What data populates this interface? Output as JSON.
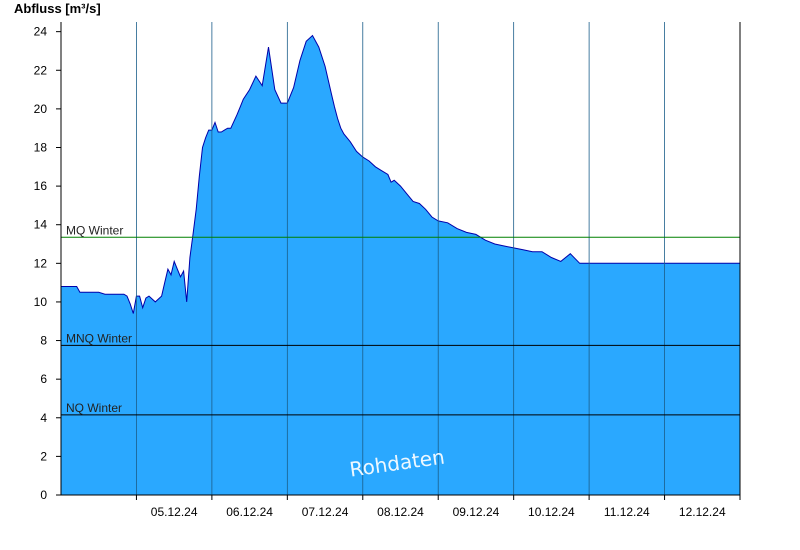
{
  "chart_data": {
    "type": "area",
    "title": "",
    "ylabel": "Abfluss [m³/s]",
    "xlabel": "",
    "ylim": [
      0,
      24.5
    ],
    "yticks": [
      0,
      2,
      4,
      6,
      8,
      10,
      12,
      14,
      16,
      18,
      20,
      22,
      24
    ],
    "x_range": [
      "04.12.24 00:00",
      "12.12.24 24:00"
    ],
    "xtick_labels": [
      "05.12.24",
      "06.12.24",
      "07.12.24",
      "08.12.24",
      "09.12.24",
      "10.12.24",
      "11.12.24",
      "12.12.24"
    ],
    "grid": {
      "vertical": true,
      "horizontal_y": false
    },
    "fill_color": "#2aa8ff",
    "line_color": "#0000aa",
    "series": [
      {
        "x": [
          "04.12.24 00:00",
          "04.12.24 05:00",
          "04.12.24 06:00",
          "04.12.24 12:00",
          "04.12.24 14:00",
          "04.12.24 20:00",
          "04.12.24 21:00",
          "04.12.24 22:00",
          "04.12.24 23:00",
          "05.12.24 00:00",
          "05.12.24 01:00",
          "05.12.24 02:00",
          "05.12.24 03:00",
          "05.12.24 04:00",
          "05.12.24 06:00",
          "05.12.24 08:00",
          "05.12.24 09:00",
          "05.12.24 10:00",
          "05.12.24 11:00",
          "05.12.24 12:00",
          "05.12.24 13:00",
          "05.12.24 14:00",
          "05.12.24 15:00",
          "05.12.24 16:00",
          "05.12.24 17:00",
          "05.12.24 18:00",
          "05.12.24 19:00",
          "05.12.24 20:00",
          "05.12.24 21:00",
          "05.12.24 22:00",
          "05.12.24 23:00",
          "06.12.24 00:00",
          "06.12.24 01:00",
          "06.12.24 02:00",
          "06.12.24 03:00",
          "06.12.24 04:00",
          "06.12.24 05:00",
          "06.12.24 06:00",
          "06.12.24 08:00",
          "06.12.24 09:00",
          "06.12.24 10:00",
          "06.12.24 12:00",
          "06.12.24 14:00",
          "06.12.24 16:00",
          "06.12.24 18:00",
          "06.12.24 20:00",
          "06.12.24 22:00",
          "07.12.24 00:00",
          "07.12.24 02:00",
          "07.12.24 04:00",
          "07.12.24 06:00",
          "07.12.24 08:00",
          "07.12.24 10:00",
          "07.12.24 12:00",
          "07.12.24 13:00",
          "07.12.24 14:00",
          "07.12.24 15:00",
          "07.12.24 16:00",
          "07.12.24 17:00",
          "07.12.24 18:00",
          "07.12.24 20:00",
          "07.12.24 22:00",
          "08.12.24 00:00",
          "08.12.24 02:00",
          "08.12.24 04:00",
          "08.12.24 06:00",
          "08.12.24 08:00",
          "08.12.24 09:00",
          "08.12.24 10:00",
          "08.12.24 12:00",
          "08.12.24 14:00",
          "08.12.24 16:00",
          "08.12.24 18:00",
          "08.12.24 20:00",
          "08.12.24 22:00",
          "09.12.24 00:00",
          "09.12.24 03:00",
          "09.12.24 06:00",
          "09.12.24 09:00",
          "09.12.24 12:00",
          "09.12.24 15:00",
          "09.12.24 18:00",
          "09.12.24 21:00",
          "10.12.24 00:00",
          "10.12.24 03:00",
          "10.12.24 06:00",
          "10.12.24 09:00",
          "10.12.24 12:00",
          "10.12.24 15:00",
          "10.12.24 18:00",
          "10.12.24 21:00",
          "11.12.24 00:00",
          "11.12.24 03:00",
          "11.12.24 06:00",
          "11.12.24 09:00",
          "11.12.24 12:00",
          "11.12.24 15:00",
          "11.12.24 18:00",
          "11.12.24 21:00",
          "12.12.24 00:00",
          "12.12.24 03:00",
          "12.12.24 06:00",
          "12.12.24 09:00",
          "12.12.24 12:00",
          "12.12.24 15:00",
          "12.12.24 18:00",
          "12.12.24 21:00",
          "12.12.24 24:00"
        ],
        "y": [
          10.8,
          10.8,
          10.5,
          10.5,
          10.4,
          10.4,
          10.3,
          9.9,
          9.4,
          10.3,
          10.3,
          9.7,
          10.2,
          10.3,
          10.0,
          10.3,
          11.0,
          11.7,
          11.4,
          12.1,
          11.7,
          11.3,
          11.6,
          10.0,
          12.3,
          13.5,
          14.8,
          16.5,
          18.0,
          18.5,
          18.9,
          18.9,
          19.3,
          18.8,
          18.8,
          18.9,
          19.0,
          19.0,
          19.7,
          20.1,
          20.5,
          21.0,
          21.7,
          21.2,
          23.2,
          21.0,
          20.3,
          20.3,
          21.1,
          22.5,
          23.5,
          23.8,
          23.2,
          22.2,
          21.5,
          20.8,
          20.1,
          19.5,
          19.0,
          18.7,
          18.3,
          17.8,
          17.5,
          17.3,
          17.0,
          16.8,
          16.6,
          16.2,
          16.3,
          16.0,
          15.6,
          15.2,
          15.1,
          14.8,
          14.4,
          14.2,
          14.1,
          13.8,
          13.6,
          13.5,
          13.2,
          13.0,
          12.9,
          12.8,
          12.7,
          12.6,
          12.6,
          12.3,
          12.1,
          12.5,
          12.0,
          12.0,
          12.0,
          12.0,
          12.0,
          12.0,
          12.0,
          12.0,
          12.0,
          12.0,
          12.0,
          12.0,
          12.0,
          12.0,
          12.0,
          12.0,
          12.0,
          12.0
        ]
      }
    ],
    "reference_lines": [
      {
        "label": "MQ Winter",
        "value": 13.35,
        "color": "#008000"
      },
      {
        "label": "MNQ Winter",
        "value": 7.75,
        "color": "#000000"
      },
      {
        "label": "NQ Winter",
        "value": 4.15,
        "color": "#000000"
      }
    ],
    "watermark": "Rohdaten"
  }
}
